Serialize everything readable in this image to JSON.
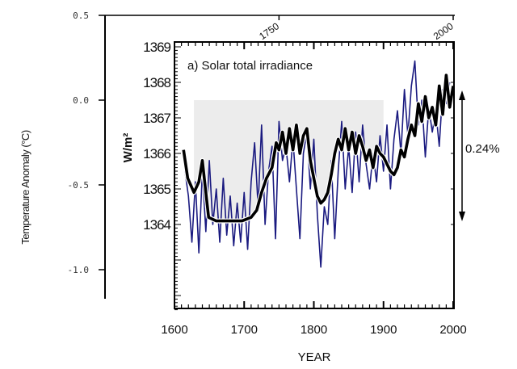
{
  "chart_data": [
    {
      "type": "line",
      "panel_label": "a) Solar total irradiance",
      "xlabel": "YEAR",
      "ylabel": "W/m²",
      "xlim": [
        1600,
        2000
      ],
      "ylim": [
        1361.5,
        1369
      ],
      "x_ticks": [
        "1600",
        "1700",
        "1800",
        "1900",
        "2000"
      ],
      "y_ticks": [
        "1369",
        "1368",
        "1367",
        "1366",
        "1365",
        "1364"
      ],
      "grid": false,
      "annotation": "0.24%",
      "colors": {
        "smoothed": "#000000",
        "annual": "#1a1a80",
        "shade": "#ececec"
      },
      "series": [
        {
          "style": "thick-black",
          "points": [
            [
              1613,
              1366.1
            ],
            [
              1619,
              1365.3
            ],
            [
              1628,
              1364.9
            ],
            [
              1635,
              1365.2
            ],
            [
              1640,
              1365.8
            ],
            [
              1645,
              1364.9
            ],
            [
              1649,
              1364.2
            ],
            [
              1660,
              1364.1
            ],
            [
              1680,
              1364.1
            ],
            [
              1697,
              1364.1
            ],
            [
              1710,
              1364.2
            ],
            [
              1718,
              1364.4
            ],
            [
              1725,
              1364.9
            ],
            [
              1732,
              1365.3
            ],
            [
              1740,
              1365.6
            ],
            [
              1746,
              1366.3
            ],
            [
              1750,
              1366.1
            ],
            [
              1755,
              1366.6
            ],
            [
              1760,
              1366.0
            ],
            [
              1765,
              1366.7
            ],
            [
              1770,
              1366.1
            ],
            [
              1775,
              1366.8
            ],
            [
              1780,
              1366.0
            ],
            [
              1785,
              1366.5
            ],
            [
              1790,
              1366.7
            ],
            [
              1795,
              1365.8
            ],
            [
              1800,
              1365.3
            ],
            [
              1805,
              1364.8
            ],
            [
              1810,
              1364.6
            ],
            [
              1815,
              1364.7
            ],
            [
              1820,
              1364.9
            ],
            [
              1825,
              1365.4
            ],
            [
              1830,
              1366.0
            ],
            [
              1835,
              1366.4
            ],
            [
              1840,
              1366.1
            ],
            [
              1845,
              1366.7
            ],
            [
              1850,
              1366.1
            ],
            [
              1855,
              1366.6
            ],
            [
              1860,
              1366.0
            ],
            [
              1865,
              1366.5
            ],
            [
              1870,
              1366.2
            ],
            [
              1875,
              1365.8
            ],
            [
              1880,
              1366.1
            ],
            [
              1885,
              1365.6
            ],
            [
              1890,
              1366.2
            ],
            [
              1895,
              1366.0
            ],
            [
              1900,
              1365.9
            ],
            [
              1905,
              1365.7
            ],
            [
              1910,
              1365.5
            ],
            [
              1915,
              1365.4
            ],
            [
              1920,
              1365.6
            ],
            [
              1925,
              1366.1
            ],
            [
              1930,
              1365.9
            ],
            [
              1935,
              1366.4
            ],
            [
              1940,
              1366.8
            ],
            [
              1945,
              1366.5
            ],
            [
              1950,
              1367.4
            ],
            [
              1955,
              1366.9
            ],
            [
              1960,
              1367.6
            ],
            [
              1965,
              1367.0
            ],
            [
              1970,
              1367.3
            ],
            [
              1975,
              1366.8
            ],
            [
              1980,
              1367.9
            ],
            [
              1985,
              1367.1
            ],
            [
              1990,
              1368.2
            ],
            [
              1995,
              1367.3
            ],
            [
              2000,
              1367.9
            ]
          ]
        },
        {
          "style": "thin-blue",
          "points": [
            [
              1615,
              1365.5
            ],
            [
              1620,
              1364.8
            ],
            [
              1625,
              1363.5
            ],
            [
              1630,
              1365.2
            ],
            [
              1635,
              1363.2
            ],
            [
              1640,
              1365.5
            ],
            [
              1645,
              1363.8
            ],
            [
              1650,
              1365.8
            ],
            [
              1655,
              1364.0
            ],
            [
              1660,
              1365.0
            ],
            [
              1665,
              1363.5
            ],
            [
              1670,
              1365.3
            ],
            [
              1675,
              1363.7
            ],
            [
              1680,
              1364.8
            ],
            [
              1685,
              1363.4
            ],
            [
              1690,
              1364.6
            ],
            [
              1695,
              1363.5
            ],
            [
              1700,
              1364.9
            ],
            [
              1705,
              1363.3
            ],
            [
              1710,
              1365.2
            ],
            [
              1715,
              1366.3
            ],
            [
              1720,
              1364.5
            ],
            [
              1725,
              1366.8
            ],
            [
              1730,
              1364.0
            ],
            [
              1735,
              1365.5
            ],
            [
              1740,
              1366.2
            ],
            [
              1745,
              1363.6
            ],
            [
              1750,
              1366.9
            ],
            [
              1755,
              1365.8
            ],
            [
              1760,
              1366.2
            ],
            [
              1765,
              1365.2
            ],
            [
              1770,
              1366.4
            ],
            [
              1775,
              1365.0
            ],
            [
              1780,
              1363.6
            ],
            [
              1785,
              1366.0
            ],
            [
              1790,
              1366.6
            ],
            [
              1795,
              1365.0
            ],
            [
              1800,
              1366.4
            ],
            [
              1805,
              1364.3
            ],
            [
              1810,
              1362.8
            ],
            [
              1815,
              1364.5
            ],
            [
              1820,
              1364.0
            ],
            [
              1825,
              1365.8
            ],
            [
              1830,
              1363.6
            ],
            [
              1835,
              1365.5
            ],
            [
              1840,
              1366.9
            ],
            [
              1845,
              1365.0
            ],
            [
              1850,
              1366.2
            ],
            [
              1855,
              1364.9
            ],
            [
              1860,
              1366.6
            ],
            [
              1865,
              1365.2
            ],
            [
              1870,
              1366.8
            ],
            [
              1875,
              1365.7
            ],
            [
              1880,
              1365.0
            ],
            [
              1885,
              1366.0
            ],
            [
              1890,
              1365.2
            ],
            [
              1895,
              1366.5
            ],
            [
              1900,
              1365.5
            ],
            [
              1905,
              1366.8
            ],
            [
              1910,
              1365.0
            ],
            [
              1915,
              1366.4
            ],
            [
              1920,
              1367.2
            ],
            [
              1925,
              1366.0
            ],
            [
              1930,
              1367.8
            ],
            [
              1935,
              1366.5
            ],
            [
              1940,
              1367.9
            ],
            [
              1945,
              1368.6
            ],
            [
              1950,
              1366.8
            ],
            [
              1955,
              1367.5
            ],
            [
              1960,
              1365.9
            ],
            [
              1965,
              1367.3
            ],
            [
              1970,
              1366.6
            ],
            [
              1975,
              1367.2
            ],
            [
              1980,
              1366.2
            ],
            [
              1985,
              1367.8
            ],
            [
              1990,
              1367.4
            ],
            [
              1995,
              1368.0
            ]
          ]
        }
      ],
      "shaded_span": [
        1628,
        1900
      ]
    },
    {
      "type": "axes-overlay",
      "ylabel": "Temperature Anomaly (°C)",
      "ylim": [
        -1.2,
        0.5
      ],
      "y_ticks": [
        "0.5",
        "0.0",
        "-0.5",
        "-1.0"
      ],
      "x_ticks_top": [
        "1750",
        "2000"
      ]
    }
  ]
}
